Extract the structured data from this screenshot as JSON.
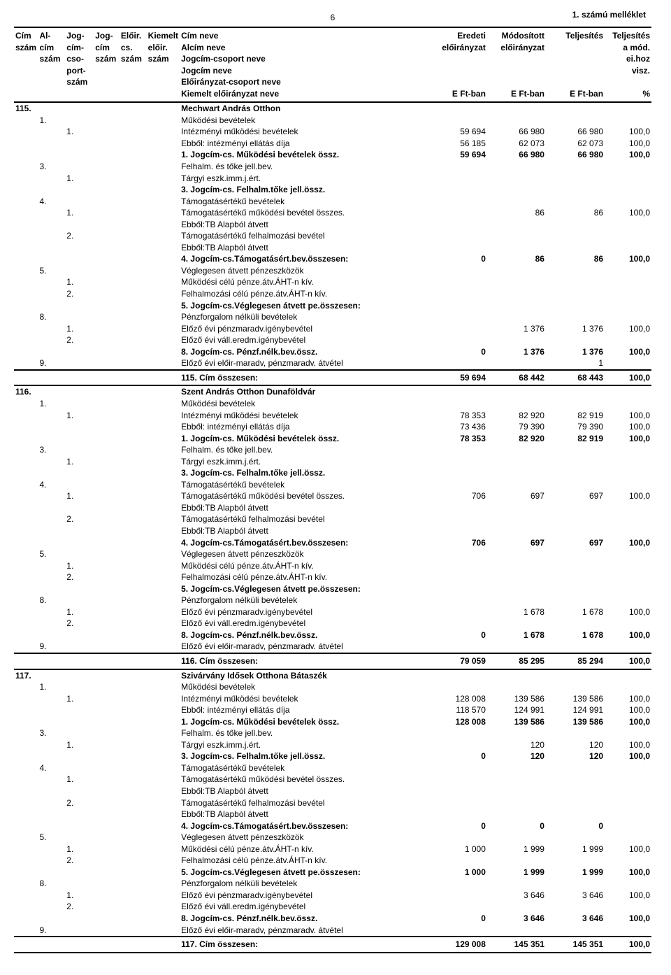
{
  "page": {
    "number": "6",
    "annex": "1. számú melléklet"
  },
  "header": {
    "h1": [
      "Cím",
      "Al-",
      "Jog-",
      "Jog-",
      "Előir.",
      "Kiemelt",
      "Cím neve",
      "Eredeti",
      "Módosított",
      "Teljesítés",
      "Teljesítés"
    ],
    "h2": [
      "szám",
      "cím",
      "cím-",
      "cím",
      "cs.",
      "előir.",
      "Alcím neve",
      "előirányzat",
      "előirányzat",
      "",
      "a mód."
    ],
    "h3": [
      "",
      "szám",
      "cso-",
      "szám",
      "szám",
      "szám",
      "Jogcím-csoport neve",
      "",
      "",
      "",
      "ei.hoz"
    ],
    "h4": [
      "",
      "",
      "port-",
      "",
      "",
      "",
      "Jogcím neve",
      "",
      "",
      "",
      "visz."
    ],
    "h5": [
      "",
      "",
      "szám",
      "",
      "",
      "",
      "Előirányzat-csoport neve",
      "",
      "",
      "",
      ""
    ],
    "h6": [
      "",
      "",
      "",
      "",
      "",
      "",
      "Kiemelt előirányzat neve",
      "E Ft-ban",
      "E Ft-ban",
      "E Ft-ban",
      "%"
    ]
  },
  "rows": [
    {
      "c0": "115.",
      "bold": true,
      "lbl": "Mechwart András Otthon"
    },
    {
      "c1": "1.",
      "lbl": "Működési bevételek"
    },
    {
      "c2": "1.",
      "lbl": "Intézményi működési bevételek",
      "v": [
        "59 694",
        "66 980",
        "66 980",
        "100,0"
      ]
    },
    {
      "lbl": "Ebből: intézményi ellátás díja",
      "v": [
        "56 185",
        "62 073",
        "62 073",
        "100,0"
      ]
    },
    {
      "bold": true,
      "lbl": "1. Jogcím-cs. Működési bevételek össz.",
      "v": [
        "59 694",
        "66 980",
        "66 980",
        "100,0"
      ]
    },
    {
      "c1": "3.",
      "lbl": "Felhalm. és tőke jell.bev."
    },
    {
      "c2": "1.",
      "lbl": "Tárgyi eszk.imm.j.ért."
    },
    {
      "bold": true,
      "lbl": "3. Jogcím-cs. Felhalm.tőke jell.össz."
    },
    {
      "c1": "4.",
      "lbl": "Támogatásértékű bevételek"
    },
    {
      "c2": "1.",
      "lbl": "Támogatásértékű működési bevétel összes.",
      "v": [
        "",
        "86",
        "86",
        "100,0"
      ]
    },
    {
      "lbl": "Ebből:TB Alapból átvett"
    },
    {
      "c2": "2.",
      "lbl": "Támogatásértékű felhalmozási bevétel"
    },
    {
      "lbl": "Ebből:TB Alapból átvett"
    },
    {
      "bold": true,
      "lbl": "4. Jogcím-cs.Támogatásért.bev.összesen:",
      "v": [
        "0",
        "86",
        "86",
        "100,0"
      ]
    },
    {
      "c1": "5.",
      "lbl": "Véglegesen átvett pénzeszközök"
    },
    {
      "c2": "1.",
      "lbl": "Működési célú pénze.átv.ÁHT-n kív."
    },
    {
      "c2": "2.",
      "lbl": "Felhalmozási célú pénze.átv.ÁHT-n kív."
    },
    {
      "bold": true,
      "lbl": "5. Jogcím-cs.Véglegesen átvett pe.összesen:"
    },
    {
      "c1": "8.",
      "lbl": "Pénzforgalom nélküli bevételek"
    },
    {
      "c2": "1.",
      "lbl": "Előző évi pénzmaradv.igénybevétel",
      "v": [
        "",
        "1 376",
        "1 376",
        "100,0"
      ]
    },
    {
      "c2": "2.",
      "lbl": "Előző évi váll.eredm.igénybevétel"
    },
    {
      "bold": true,
      "lbl": "8. Jogcím-cs. Pénzf.nélk.bev.össz.",
      "v": [
        "0",
        "1 376",
        "1 376",
        "100,0"
      ]
    },
    {
      "c1": "9.",
      "lbl": "Előző évi előir-maradv, pénzmaradv. átvétel",
      "v": [
        "",
        "",
        "1",
        ""
      ]
    },
    {
      "sum": true,
      "lbl": "115. Cím összesen:",
      "v": [
        "59 694",
        "68 442",
        "68 443",
        "100,0"
      ]
    },
    {
      "c0": "116.",
      "bold": true,
      "lbl": "Szent András Otthon Dunaföldvár"
    },
    {
      "c1": "1.",
      "lbl": "Működési bevételek"
    },
    {
      "c2": "1.",
      "lbl": "Intézményi működési bevételek",
      "v": [
        "78 353",
        "82 920",
        "82 919",
        "100,0"
      ]
    },
    {
      "lbl": "Ebből: intézményi ellátás díja",
      "v": [
        "73 436",
        "79 390",
        "79 390",
        "100,0"
      ]
    },
    {
      "bold": true,
      "lbl": "1. Jogcím-cs. Működési bevételek össz.",
      "v": [
        "78 353",
        "82 920",
        "82 919",
        "100,0"
      ]
    },
    {
      "c1": "3.",
      "lbl": "Felhalm. és tőke jell.bev."
    },
    {
      "c2": "1.",
      "lbl": "Tárgyi eszk.imm.j.ért."
    },
    {
      "bold": true,
      "lbl": "3. Jogcím-cs. Felhalm.tőke jell.össz."
    },
    {
      "c1": "4.",
      "lbl": "Támogatásértékű bevételek"
    },
    {
      "c2": "1.",
      "lbl": "Támogatásértékű működési bevétel összes.",
      "v": [
        "706",
        "697",
        "697",
        "100,0"
      ]
    },
    {
      "lbl": "Ebből:TB Alapból átvett"
    },
    {
      "c2": "2.",
      "lbl": "Támogatásértékű felhalmozási bevétel"
    },
    {
      "lbl": "Ebből:TB Alapból átvett"
    },
    {
      "bold": true,
      "lbl": "4. Jogcím-cs.Támogatásért.bev.összesen:",
      "v": [
        "706",
        "697",
        "697",
        "100,0"
      ]
    },
    {
      "c1": "5.",
      "lbl": "Véglegesen átvett pénzeszközök"
    },
    {
      "c2": "1.",
      "lbl": "Működési célú pénze.átv.ÁHT-n kív."
    },
    {
      "c2": "2.",
      "lbl": "Felhalmozási célú pénze.átv.ÁHT-n kív."
    },
    {
      "bold": true,
      "lbl": "5. Jogcím-cs.Véglegesen átvett pe.összesen:"
    },
    {
      "c1": "8.",
      "lbl": "Pénzforgalom nélküli bevételek"
    },
    {
      "c2": "1.",
      "lbl": "Előző évi pénzmaradv.igénybevétel",
      "v": [
        "",
        "1 678",
        "1 678",
        "100,0"
      ]
    },
    {
      "c2": "2.",
      "lbl": "Előző évi váll.eredm.igénybevétel"
    },
    {
      "bold": true,
      "lbl": "8. Jogcím-cs. Pénzf.nélk.bev.össz.",
      "v": [
        "0",
        "1 678",
        "1 678",
        "100,0"
      ]
    },
    {
      "c1": "9.",
      "lbl": "Előző évi előir-maradv, pénzmaradv. átvétel"
    },
    {
      "sum": true,
      "lbl": "116. Cím összesen:",
      "v": [
        "79 059",
        "85 295",
        "85 294",
        "100,0"
      ]
    },
    {
      "c0": "117.",
      "bold": true,
      "lbl": "Szivárvány Idősek Otthona Bátaszék"
    },
    {
      "c1": "1.",
      "lbl": "Működési bevételek"
    },
    {
      "c2": "1.",
      "lbl": "Intézményi működési bevételek",
      "v": [
        "128 008",
        "139 586",
        "139 586",
        "100,0"
      ]
    },
    {
      "lbl": "Ebből: intézményi ellátás díja",
      "v": [
        "118 570",
        "124 991",
        "124 991",
        "100,0"
      ]
    },
    {
      "bold": true,
      "lbl": "1. Jogcím-cs. Működési bevételek össz.",
      "v": [
        "128 008",
        "139 586",
        "139 586",
        "100,0"
      ]
    },
    {
      "c1": "3.",
      "lbl": "Felhalm. és tőke jell.bev."
    },
    {
      "c2": "1.",
      "lbl": "Tárgyi eszk.imm.j.ért.",
      "v": [
        "",
        "120",
        "120",
        "100,0"
      ]
    },
    {
      "bold": true,
      "lbl": "3. Jogcím-cs. Felhalm.tőke jell.össz.",
      "v": [
        "0",
        "120",
        "120",
        "100,0"
      ]
    },
    {
      "c1": "4.",
      "lbl": "Támogatásértékű bevételek"
    },
    {
      "c2": "1.",
      "lbl": "Támogatásértékű működési bevétel összes."
    },
    {
      "lbl": "Ebből:TB Alapból átvett"
    },
    {
      "c2": "2.",
      "lbl": "Támogatásértékű felhalmozási bevétel"
    },
    {
      "lbl": "Ebből:TB Alapból átvett"
    },
    {
      "bold": true,
      "lbl": "4. Jogcím-cs.Támogatásért.bev.összesen:",
      "v": [
        "0",
        "0",
        "0",
        ""
      ]
    },
    {
      "c1": "5.",
      "lbl": "Véglegesen átvett pénzeszközök"
    },
    {
      "c2": "1.",
      "lbl": "Működési célú pénze.átv.ÁHT-n kív.",
      "v": [
        "1 000",
        "1 999",
        "1 999",
        "100,0"
      ]
    },
    {
      "c2": "2.",
      "lbl": "Felhalmozási célú pénze.átv.ÁHT-n kív."
    },
    {
      "bold": true,
      "lbl": "5. Jogcím-cs.Véglegesen átvett pe.összesen:",
      "v": [
        "1 000",
        "1 999",
        "1 999",
        "100,0"
      ]
    },
    {
      "c1": "8.",
      "lbl": "Pénzforgalom nélküli bevételek"
    },
    {
      "c2": "1.",
      "lbl": "Előző évi pénzmaradv.igénybevétel",
      "v": [
        "",
        "3 646",
        "3 646",
        "100,0"
      ]
    },
    {
      "c2": "2.",
      "lbl": "Előző évi váll.eredm.igénybevétel"
    },
    {
      "bold": true,
      "lbl": "8. Jogcím-cs. Pénzf.nélk.bev.össz.",
      "v": [
        "0",
        "3 646",
        "3 646",
        "100,0"
      ]
    },
    {
      "c1": "9.",
      "lbl": "Előző évi előir-maradv, pénzmaradv. átvétel"
    },
    {
      "sum": true,
      "lbl": "117. Cím összesen:",
      "v": [
        "129 008",
        "145 351",
        "145 351",
        "100,0"
      ]
    }
  ]
}
